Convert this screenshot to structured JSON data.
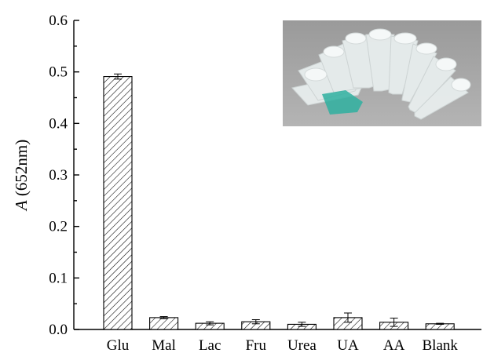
{
  "chart_data": {
    "type": "bar",
    "categories": [
      "Glu",
      "Mal",
      "Lac",
      "Fru",
      "Urea",
      "UA",
      "AA",
      "Blank"
    ],
    "values": [
      0.491,
      0.023,
      0.012,
      0.015,
      0.01,
      0.023,
      0.014,
      0.011
    ],
    "errors": [
      0.005,
      0.002,
      0.003,
      0.004,
      0.004,
      0.009,
      0.008,
      0.001
    ],
    "ylabel_italic": "A",
    "ylabel_rest": " (652nm)",
    "xlabel": "",
    "ylim": [
      0.0,
      0.6
    ],
    "yticks": [
      "0.0",
      "0.1",
      "0.2",
      "0.3",
      "0.4",
      "0.5",
      "0.6"
    ],
    "bar_fill": "diagonal-hatch",
    "inset": {
      "description_icon": "photo-of-tubes-icon",
      "highlight_color": "#2fb0a0"
    }
  }
}
